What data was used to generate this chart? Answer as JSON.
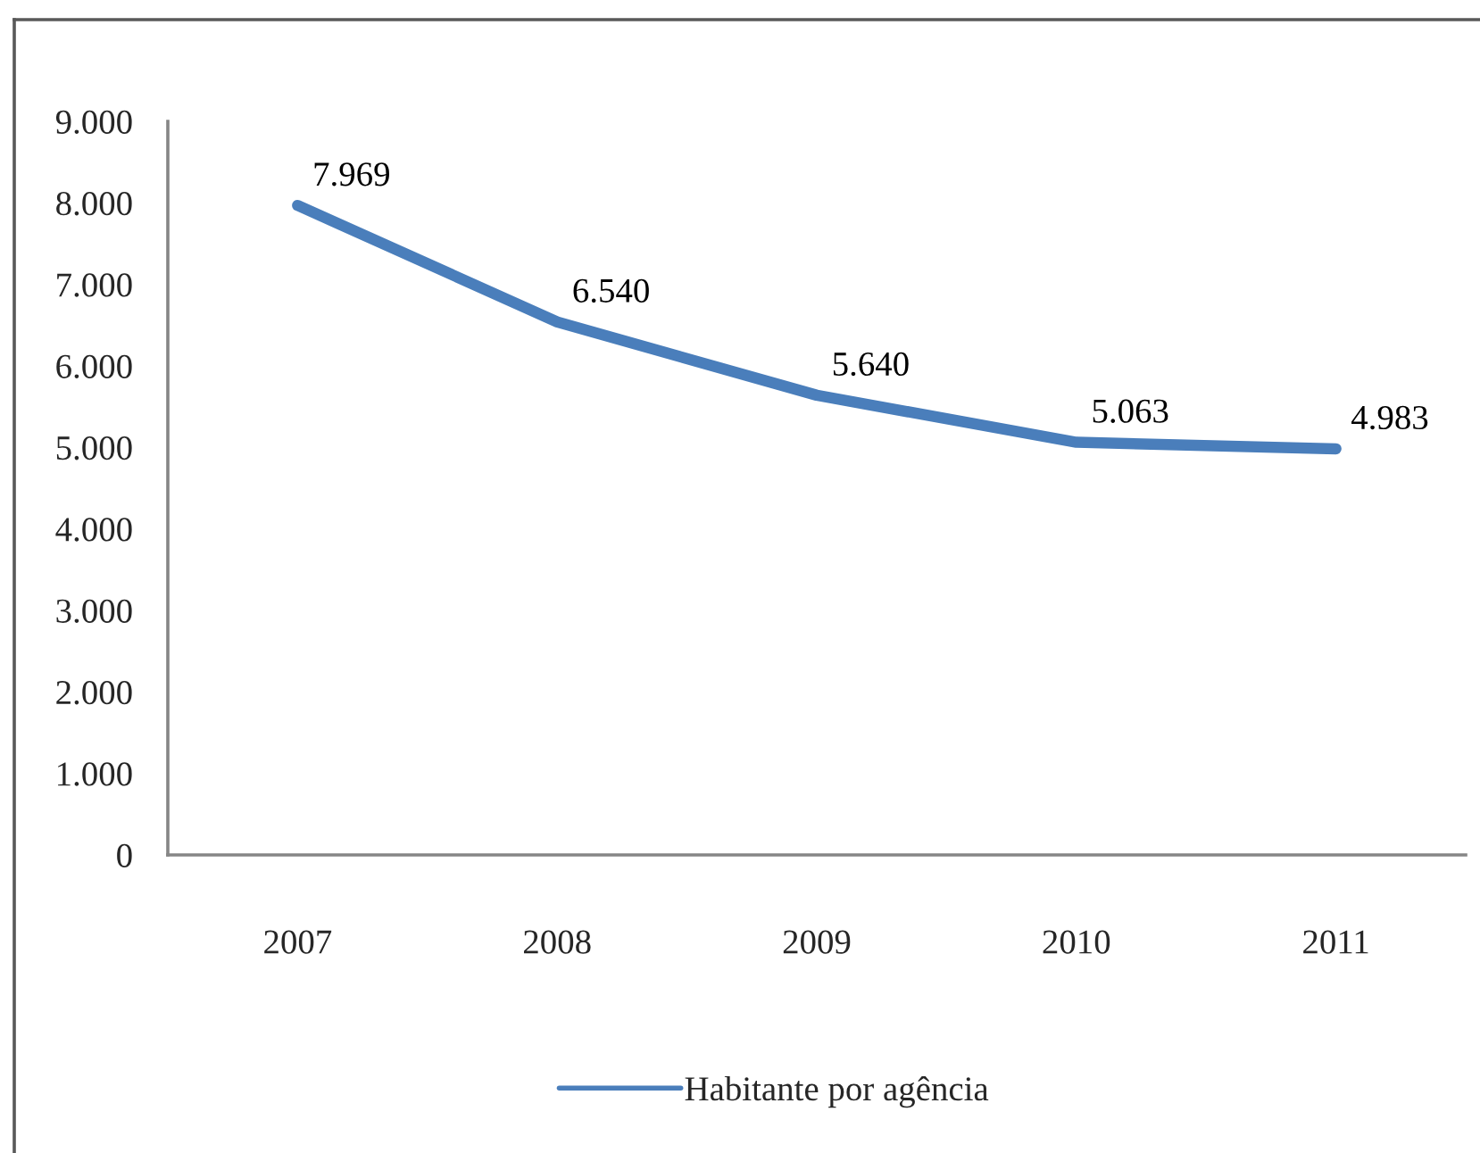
{
  "chart_data": {
    "type": "line",
    "categories": [
      "2007",
      "2008",
      "2009",
      "2010",
      "2011"
    ],
    "series": [
      {
        "name": "Habitante por agência",
        "color": "#4a7ebb",
        "values": [
          7969,
          6540,
          5640,
          5063,
          4983
        ],
        "value_labels": [
          "7.969",
          "6.540",
          "5.640",
          "5.063",
          "4.983"
        ]
      }
    ],
    "ylim": [
      0,
      9000
    ],
    "yticks": [
      0,
      {
        "value": 1000,
        "label": "1.000"
      },
      {
        "value": 2000,
        "label": "2.000"
      },
      {
        "value": 3000,
        "label": "3.000"
      },
      {
        "value": 4000,
        "label": "4.000"
      },
      {
        "value": 5000,
        "label": "5.000"
      },
      {
        "value": 6000,
        "label": "6.000"
      },
      {
        "value": 7000,
        "label": "7.000"
      },
      {
        "value": 8000,
        "label": "8.000"
      },
      {
        "value": 9000,
        "label": "9.000"
      }
    ],
    "legend": "bottom",
    "marker": "none",
    "line_style": "solid"
  }
}
